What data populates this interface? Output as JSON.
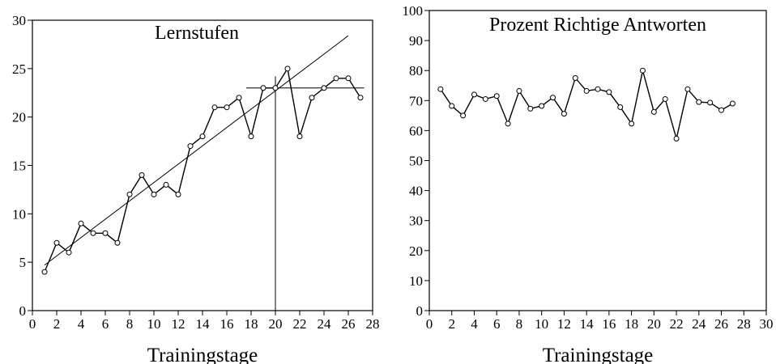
{
  "chart_data": [
    {
      "type": "line",
      "title": "Lernstufen",
      "xlabel": "Trainingstage",
      "ylabel": "",
      "xlim": [
        0,
        28
      ],
      "ylim": [
        0,
        30
      ],
      "x_ticks": [
        0,
        2,
        4,
        6,
        8,
        10,
        12,
        14,
        16,
        18,
        20,
        22,
        24,
        26,
        28
      ],
      "y_ticks": [
        0,
        5,
        10,
        15,
        20,
        25,
        30
      ],
      "x": [
        1,
        2,
        3,
        4,
        5,
        6,
        7,
        8,
        9,
        10,
        11,
        12,
        13,
        14,
        15,
        16,
        17,
        18,
        19,
        20,
        21,
        22,
        23,
        24,
        25,
        26,
        27
      ],
      "series": [
        {
          "values": [
            4,
            7,
            6,
            9,
            8,
            8,
            7,
            12,
            14,
            12,
            13,
            12,
            17,
            18,
            21,
            21,
            22,
            18,
            23,
            23,
            25,
            18,
            22,
            23,
            24,
            24,
            22
          ]
        }
      ],
      "trend_line": {
        "x": [
          1,
          26
        ],
        "y": [
          4.7,
          28.4
        ]
      },
      "reference_lines": {
        "vertical": {
          "x": 20,
          "y": [
            0,
            24.2
          ]
        },
        "horizontal": {
          "y": 23,
          "x": [
            17.6,
            27.3
          ]
        }
      },
      "grid": false
    },
    {
      "type": "line",
      "title": "Prozent Richtige Antworten",
      "xlabel": "Trainingstage",
      "ylabel": "",
      "xlim": [
        0,
        30
      ],
      "ylim": [
        0,
        100
      ],
      "x_ticks": [
        0,
        2,
        4,
        6,
        8,
        10,
        12,
        14,
        16,
        18,
        20,
        22,
        24,
        26,
        28,
        30
      ],
      "y_ticks": [
        0,
        10,
        20,
        30,
        40,
        50,
        60,
        70,
        80,
        90,
        100
      ],
      "x": [
        1,
        2,
        3,
        4,
        5,
        6,
        7,
        8,
        9,
        10,
        11,
        12,
        13,
        14,
        15,
        16,
        17,
        18,
        19,
        20,
        21,
        22,
        23,
        24,
        25,
        26,
        27
      ],
      "series": [
        {
          "values": [
            73.8,
            68.2,
            65,
            72,
            70.5,
            71.5,
            62.3,
            73.2,
            67.3,
            68.2,
            71,
            65.6,
            77.5,
            73.2,
            73.8,
            72.8,
            67.8,
            62.3,
            80,
            66.2,
            70.5,
            57.3,
            73.8,
            69.5,
            69.3,
            66.8,
            69
          ]
        }
      ],
      "grid": false
    }
  ]
}
